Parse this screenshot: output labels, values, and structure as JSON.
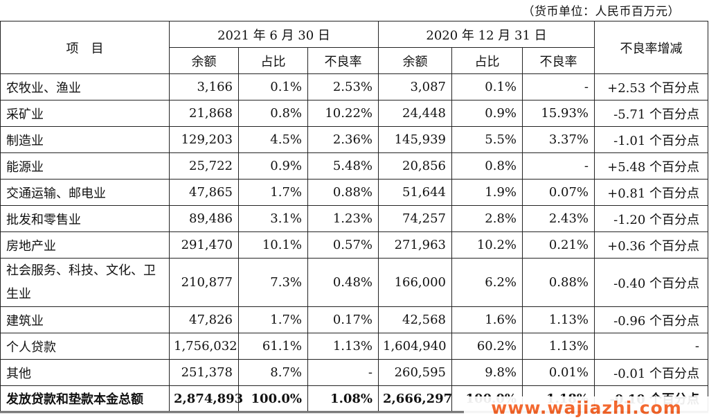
{
  "unit_note": "（货币单位：人民币百万元）",
  "header": {
    "item": "项　目",
    "period1": "2021 年 6 月 30 日",
    "period2": "2020 年 12 月 31 日",
    "npl_change": "不良率增减",
    "balance": "余额",
    "share": "占比",
    "npl": "不良率"
  },
  "rows": [
    {
      "name": "农牧业、渔业",
      "b1": "3,166",
      "s1": "0.1%",
      "n1": "2.53%",
      "b2": "3,087",
      "s2": "0.1%",
      "n2": "-",
      "chg": "+2.53 个百分点"
    },
    {
      "name": "采矿业",
      "b1": "21,868",
      "s1": "0.8%",
      "n1": "10.22%",
      "b2": "24,448",
      "s2": "0.9%",
      "n2": "15.93%",
      "chg": "-5.71 个百分点"
    },
    {
      "name": "制造业",
      "b1": "129,203",
      "s1": "4.5%",
      "n1": "2.36%",
      "b2": "145,939",
      "s2": "5.5%",
      "n2": "3.37%",
      "chg": "-1.01 个百分点"
    },
    {
      "name": "能源业",
      "b1": "25,722",
      "s1": "0.9%",
      "n1": "5.48%",
      "b2": "20,856",
      "s2": "0.8%",
      "n2": "-",
      "chg": "+5.48 个百分点"
    },
    {
      "name": "交通运输、邮电业",
      "b1": "47,865",
      "s1": "1.7%",
      "n1": "0.88%",
      "b2": "51,644",
      "s2": "1.9%",
      "n2": "0.07%",
      "chg": "+0.81 个百分点"
    },
    {
      "name": "批发和零售业",
      "b1": "89,486",
      "s1": "3.1%",
      "n1": "1.23%",
      "b2": "74,257",
      "s2": "2.8%",
      "n2": "2.43%",
      "chg": "-1.20 个百分点"
    },
    {
      "name": "房地产业",
      "b1": "291,470",
      "s1": "10.1%",
      "n1": "0.57%",
      "b2": "271,963",
      "s2": "10.2%",
      "n2": "0.21%",
      "chg": "+0.36 个百分点"
    },
    {
      "name": "社会服务、科技、文化、卫生业",
      "b1": "210,877",
      "s1": "7.3%",
      "n1": "0.48%",
      "b2": "166,000",
      "s2": "6.2%",
      "n2": "0.88%",
      "chg": "-0.40 个百分点"
    },
    {
      "name": "建筑业",
      "b1": "47,826",
      "s1": "1.7%",
      "n1": "0.17%",
      "b2": "42,568",
      "s2": "1.6%",
      "n2": "1.13%",
      "chg": "-0.96 个百分点"
    },
    {
      "name": "个人贷款",
      "b1": "1,756,032",
      "s1": "61.1%",
      "n1": "1.13%",
      "b2": "1,604,940",
      "s2": "60.2%",
      "n2": "1.13%",
      "chg": "-"
    },
    {
      "name": "其他",
      "b1": "251,378",
      "s1": "8.7%",
      "n1": "-",
      "b2": "260,595",
      "s2": "9.8%",
      "n2": "0.01%",
      "chg": "-0.01 个百分点"
    }
  ],
  "total": {
    "name": "发放贷款和垫款本金总额",
    "b1": "2,874,893",
    "s1": "100.0%",
    "n1": "1.08%",
    "b2": "2,666,297",
    "s2": "100.0%",
    "n2": "1.18%",
    "chg": "-0.10 个百分点"
  },
  "watermark": "www.wajiazhi.com"
}
